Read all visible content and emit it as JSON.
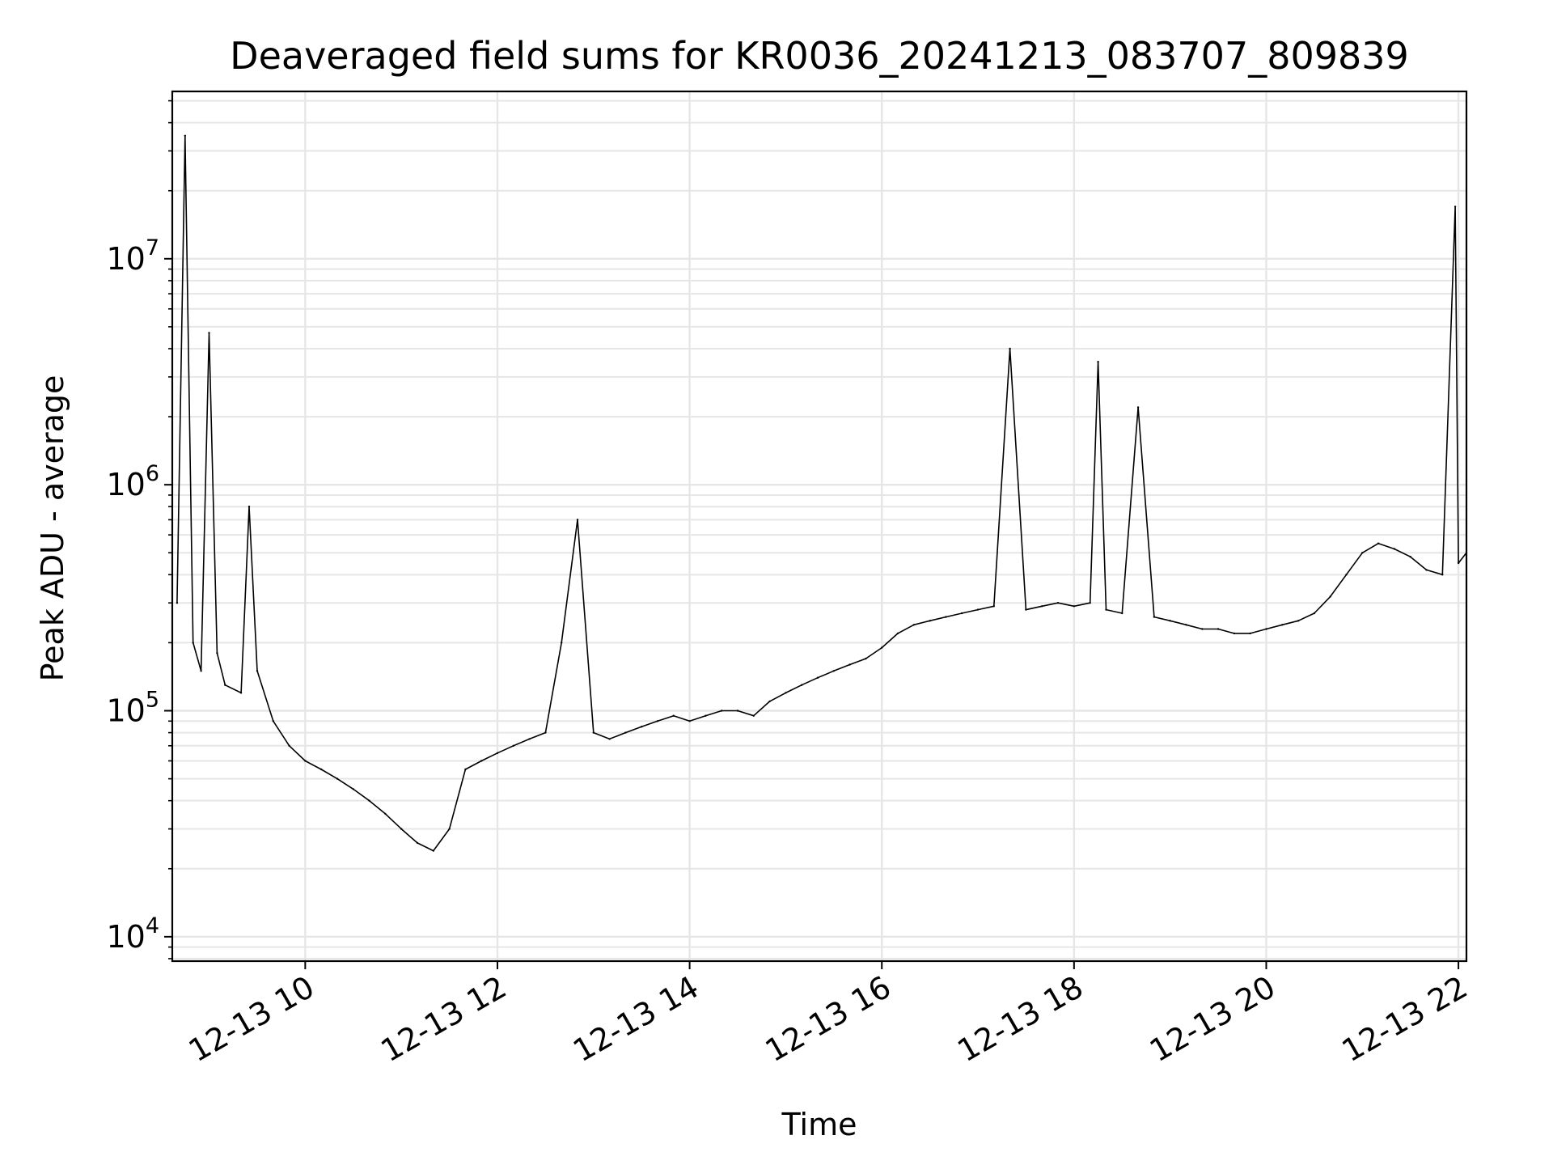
{
  "chart_data": {
    "type": "line",
    "title": "Deaveraged field sums for KR0036_20241213_083707_809839",
    "xlabel": "Time",
    "ylabel": "Peak ADU - average",
    "yscale": "log",
    "grid": true,
    "grid_minor": true,
    "x_range": [
      "2024-12-13 08:37",
      "2024-12-13 22:05"
    ],
    "ylim": [
      7800,
      55000000
    ],
    "x_ticks": [
      {
        "label": "12-13 10",
        "hour": 10
      },
      {
        "label": "12-13 12",
        "hour": 12
      },
      {
        "label": "12-13 14",
        "hour": 14
      },
      {
        "label": "12-13 16",
        "hour": 16
      },
      {
        "label": "12-13 18",
        "hour": 18
      },
      {
        "label": "12-13 20",
        "hour": 20
      },
      {
        "label": "12-13 22",
        "hour": 22
      }
    ],
    "y_ticks": [
      {
        "base": "10",
        "exp": "4",
        "value": 10000
      },
      {
        "base": "10",
        "exp": "5",
        "value": 100000
      },
      {
        "base": "10",
        "exp": "6",
        "value": 1000000
      },
      {
        "base": "10",
        "exp": "7",
        "value": 10000000
      }
    ],
    "line_color": "#000000",
    "series": [
      {
        "points": [
          [
            "08:40",
            300000
          ],
          [
            "08:45",
            35000000
          ],
          [
            "08:50",
            200000
          ],
          [
            "08:55",
            150000
          ],
          [
            "09:00",
            4700000
          ],
          [
            "09:05",
            180000
          ],
          [
            "09:10",
            130000
          ],
          [
            "09:20",
            120000
          ],
          [
            "09:25",
            800000
          ],
          [
            "09:30",
            150000
          ],
          [
            "09:40",
            90000
          ],
          [
            "09:50",
            70000
          ],
          [
            "10:00",
            60000
          ],
          [
            "10:10",
            55000
          ],
          [
            "10:20",
            50000
          ],
          [
            "10:30",
            45000
          ],
          [
            "10:40",
            40000
          ],
          [
            "10:50",
            35000
          ],
          [
            "11:00",
            30000
          ],
          [
            "11:10",
            26000
          ],
          [
            "11:20",
            24000
          ],
          [
            "11:30",
            30000
          ],
          [
            "11:40",
            55000
          ],
          [
            "11:50",
            60000
          ],
          [
            "12:00",
            65000
          ],
          [
            "12:10",
            70000
          ],
          [
            "12:20",
            75000
          ],
          [
            "12:30",
            80000
          ],
          [
            "12:40",
            200000
          ],
          [
            "12:50",
            700000
          ],
          [
            "13:00",
            80000
          ],
          [
            "13:10",
            75000
          ],
          [
            "13:20",
            80000
          ],
          [
            "13:30",
            85000
          ],
          [
            "13:40",
            90000
          ],
          [
            "13:50",
            95000
          ],
          [
            "14:00",
            90000
          ],
          [
            "14:10",
            95000
          ],
          [
            "14:20",
            100000
          ],
          [
            "14:30",
            100000
          ],
          [
            "14:40",
            95000
          ],
          [
            "14:50",
            110000
          ],
          [
            "15:00",
            120000
          ],
          [
            "15:10",
            130000
          ],
          [
            "15:20",
            140000
          ],
          [
            "15:30",
            150000
          ],
          [
            "15:40",
            160000
          ],
          [
            "15:50",
            170000
          ],
          [
            "16:00",
            190000
          ],
          [
            "16:10",
            220000
          ],
          [
            "16:20",
            240000
          ],
          [
            "16:30",
            250000
          ],
          [
            "16:40",
            260000
          ],
          [
            "16:50",
            270000
          ],
          [
            "17:00",
            280000
          ],
          [
            "17:10",
            290000
          ],
          [
            "17:20",
            4000000
          ],
          [
            "17:30",
            280000
          ],
          [
            "17:40",
            290000
          ],
          [
            "17:50",
            300000
          ],
          [
            "18:00",
            290000
          ],
          [
            "18:10",
            300000
          ],
          [
            "18:15",
            3500000
          ],
          [
            "18:20",
            280000
          ],
          [
            "18:30",
            270000
          ],
          [
            "18:40",
            2200000
          ],
          [
            "18:50",
            260000
          ],
          [
            "19:00",
            250000
          ],
          [
            "19:10",
            240000
          ],
          [
            "19:20",
            230000
          ],
          [
            "19:30",
            230000
          ],
          [
            "19:40",
            220000
          ],
          [
            "19:50",
            220000
          ],
          [
            "20:00",
            230000
          ],
          [
            "20:10",
            240000
          ],
          [
            "20:20",
            250000
          ],
          [
            "20:30",
            270000
          ],
          [
            "20:40",
            320000
          ],
          [
            "20:50",
            400000
          ],
          [
            "21:00",
            500000
          ],
          [
            "21:10",
            550000
          ],
          [
            "21:20",
            520000
          ],
          [
            "21:30",
            480000
          ],
          [
            "21:40",
            420000
          ],
          [
            "21:50",
            400000
          ],
          [
            "21:58",
            17000000
          ],
          [
            "22:00",
            450000
          ],
          [
            "22:05",
            500000
          ]
        ]
      }
    ]
  }
}
